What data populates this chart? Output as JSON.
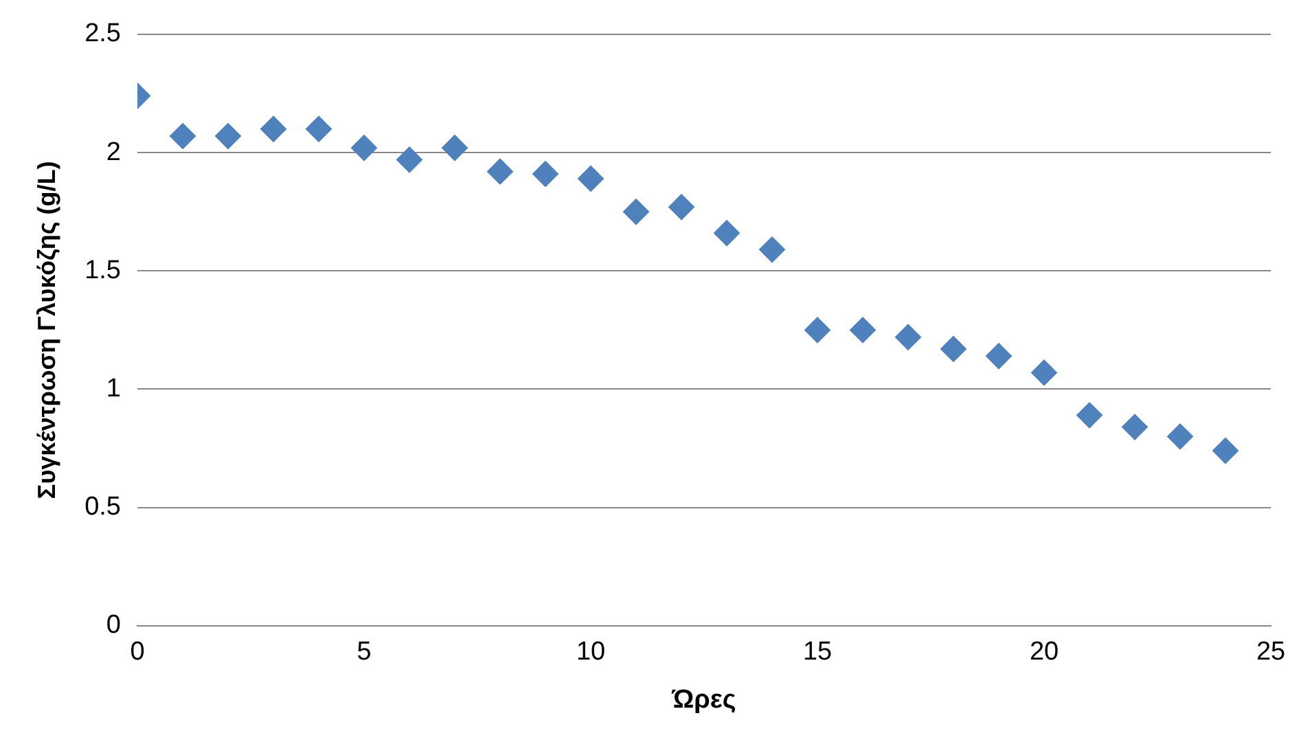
{
  "chart_data": {
    "type": "scatter",
    "xlabel": "Ώρες",
    "ylabel": "Συγκέντρωση Γλυκόζης (g/L)",
    "x": [
      0,
      1,
      2,
      3,
      4,
      5,
      6,
      7,
      8,
      9,
      10,
      11,
      12,
      13,
      14,
      15,
      16,
      17,
      18,
      19,
      20,
      21,
      22,
      23,
      24
    ],
    "series": [
      {
        "color": "#4f81bd",
        "values": [
          2.24,
          2.07,
          2.07,
          2.1,
          2.1,
          2.02,
          1.97,
          2.02,
          1.92,
          1.91,
          1.89,
          1.75,
          1.77,
          1.66,
          1.59,
          1.25,
          1.25,
          1.22,
          1.17,
          1.14,
          1.07,
          0.89,
          0.84,
          0.8,
          0.74
        ]
      }
    ],
    "xlim": [
      0,
      25
    ],
    "xticks": [
      0,
      5,
      10,
      15,
      20,
      25
    ],
    "ylim": [
      0,
      2.5
    ],
    "yticks": [
      0,
      0.5,
      1,
      1.5,
      2,
      2.5
    ],
    "grid": "y",
    "marker": "diamond",
    "legend": false
  }
}
